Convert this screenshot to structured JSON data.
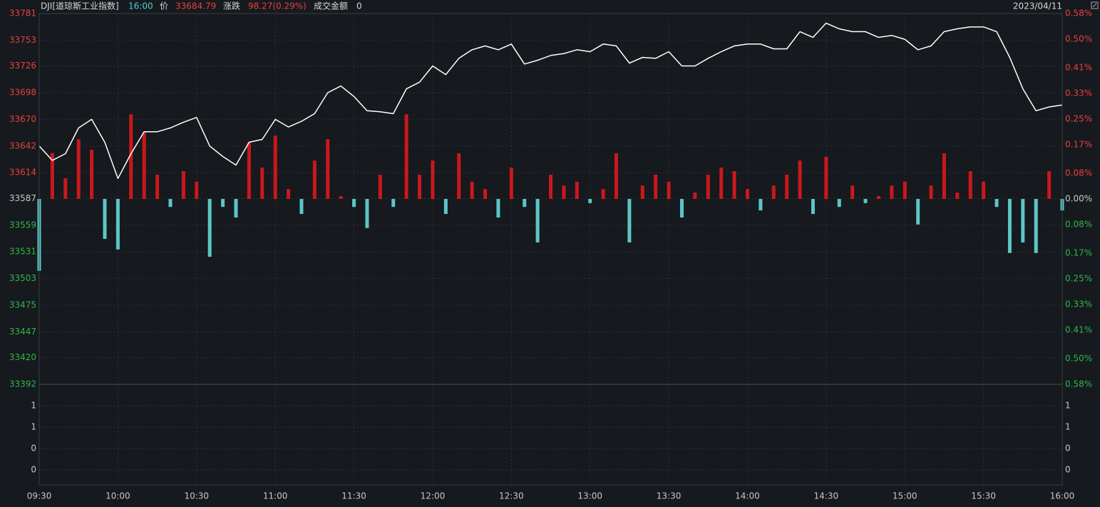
{
  "chart_data": {
    "type": "line",
    "header": {
      "symbol": "DJI[道琼斯工业指数]",
      "time": "16:00",
      "price_label": "价",
      "price": 33684.79,
      "change_label": "涨跌",
      "change": "98.27(0.29%)",
      "amount_label": "成交金额",
      "amount": 0,
      "date": "2023/04/11"
    },
    "x": [
      "09:30",
      "09:35",
      "09:40",
      "09:45",
      "09:50",
      "09:55",
      "10:00",
      "10:05",
      "10:10",
      "10:15",
      "10:20",
      "10:25",
      "10:30",
      "10:35",
      "10:40",
      "10:45",
      "10:50",
      "10:55",
      "11:00",
      "11:05",
      "11:10",
      "11:15",
      "11:20",
      "11:25",
      "11:30",
      "11:35",
      "11:40",
      "11:45",
      "11:50",
      "11:55",
      "12:00",
      "12:05",
      "12:10",
      "12:15",
      "12:20",
      "12:25",
      "12:30",
      "12:35",
      "12:40",
      "12:45",
      "12:50",
      "12:55",
      "13:00",
      "13:05",
      "13:10",
      "13:15",
      "13:20",
      "13:25",
      "13:30",
      "13:35",
      "13:40",
      "13:45",
      "13:50",
      "13:55",
      "14:00",
      "14:05",
      "14:10",
      "14:15",
      "14:20",
      "14:25",
      "14:30",
      "14:35",
      "14:40",
      "14:45",
      "14:50",
      "14:55",
      "15:00",
      "15:05",
      "15:10",
      "15:15",
      "15:20",
      "15:25",
      "15:30",
      "15:35",
      "15:40",
      "15:45",
      "15:50",
      "15:55",
      "16:00"
    ],
    "series": [
      {
        "type": "line",
        "color": "#ffffff",
        "values": [
          33642,
          33627,
          33634,
          33661,
          33670,
          33646,
          33608,
          33634,
          33657,
          33657,
          33661,
          33667,
          33672,
          33642,
          33631,
          33622,
          33646,
          33649,
          33670,
          33662,
          33668,
          33676,
          33698,
          33705,
          33694,
          33679,
          33678,
          33676,
          33702,
          33709,
          33726,
          33717,
          33734,
          33743,
          33747,
          33743,
          33749,
          33728,
          33732,
          33737,
          33739,
          33743,
          33741,
          33749,
          33747,
          33729,
          33735,
          33734,
          33741,
          33726,
          33726,
          33734,
          33741,
          33747,
          33749,
          33749,
          33744,
          33744,
          33762,
          33756,
          33771,
          33765,
          33762,
          33762,
          33756,
          33758,
          33754,
          33743,
          33747,
          33762,
          33765,
          33767,
          33767,
          33762,
          33735,
          33702,
          33679,
          33683,
          33685
        ]
      },
      {
        "type": "bar",
        "axis": "y2",
        "color": "#c8191b",
        "negative_color": "#5cc6c6",
        "values": [
          -0.225,
          0.143,
          0.065,
          0.187,
          0.154,
          -0.125,
          -0.158,
          0.265,
          0.21,
          0.076,
          -0.025,
          0.087,
          0.054,
          -0.181,
          -0.025,
          -0.058,
          0.176,
          0.098,
          0.198,
          0.031,
          -0.047,
          0.12,
          0.187,
          0.009,
          -0.025,
          -0.091,
          0.076,
          -0.025,
          0.265,
          0.076,
          0.12,
          -0.047,
          0.143,
          0.054,
          0.031,
          -0.058,
          0.098,
          -0.025,
          -0.136,
          0.076,
          0.042,
          0.054,
          -0.013,
          0.031,
          0.143,
          -0.136,
          0.042,
          0.076,
          0.054,
          -0.058,
          0.02,
          0.076,
          0.098,
          0.087,
          0.031,
          -0.036,
          0.042,
          0.076,
          0.12,
          -0.047,
          0.132,
          -0.025,
          0.042,
          -0.013,
          0.009,
          0.042,
          0.054,
          -0.08,
          0.042,
          0.143,
          0.02,
          0.087,
          0.054,
          -0.025,
          -0.169,
          -0.136,
          -0.169,
          0.087,
          -0.036
        ]
      }
    ],
    "ylim": [
      33392,
      33781
    ],
    "yticks": [
      33781,
      33753,
      33726,
      33698,
      33670,
      33642,
      33614,
      33587,
      33559,
      33531,
      33503,
      33475,
      33447,
      33420,
      33392
    ],
    "y2lim": [
      -0.58,
      0.58
    ],
    "y2ticks": [
      {
        "value": 0.58,
        "label": "0.58%"
      },
      {
        "value": 0.5,
        "label": "0.50%"
      },
      {
        "value": 0.41,
        "label": "0.41%"
      },
      {
        "value": 0.33,
        "label": "0.33%"
      },
      {
        "value": 0.25,
        "label": "0.25%"
      },
      {
        "value": 0.17,
        "label": "0.17%"
      },
      {
        "value": 0.08,
        "label": "0.08%"
      },
      {
        "value": 0,
        "label": "0.00%"
      },
      {
        "value": -0.08,
        "label": "0.08%"
      },
      {
        "value": -0.17,
        "label": "0.17%"
      },
      {
        "value": -0.25,
        "label": "0.25%"
      },
      {
        "value": -0.33,
        "label": "0.33%"
      },
      {
        "value": -0.41,
        "label": "0.41%"
      },
      {
        "value": -0.5,
        "label": "0.50%"
      },
      {
        "value": -0.58,
        "label": "0.58%"
      }
    ],
    "axis_colors": {
      "up": "#e8413e",
      "down": "#2fb84a",
      "flat": "#c8c8c8"
    },
    "volume_pane": {
      "ylim": [
        -0.11,
        1.3
      ],
      "yticks": [
        {
          "value": 1.0,
          "label": "1"
        },
        {
          "value": 0.7,
          "label": "1"
        },
        {
          "value": 0.4,
          "label": "0"
        },
        {
          "value": 0.1,
          "label": "0"
        }
      ]
    },
    "xticks": [
      "09:30",
      "10:00",
      "10:30",
      "11:00",
      "11:30",
      "12:00",
      "12:30",
      "13:00",
      "13:30",
      "14:00",
      "14:30",
      "15:00",
      "15:30",
      "16:00"
    ],
    "grid": true
  }
}
